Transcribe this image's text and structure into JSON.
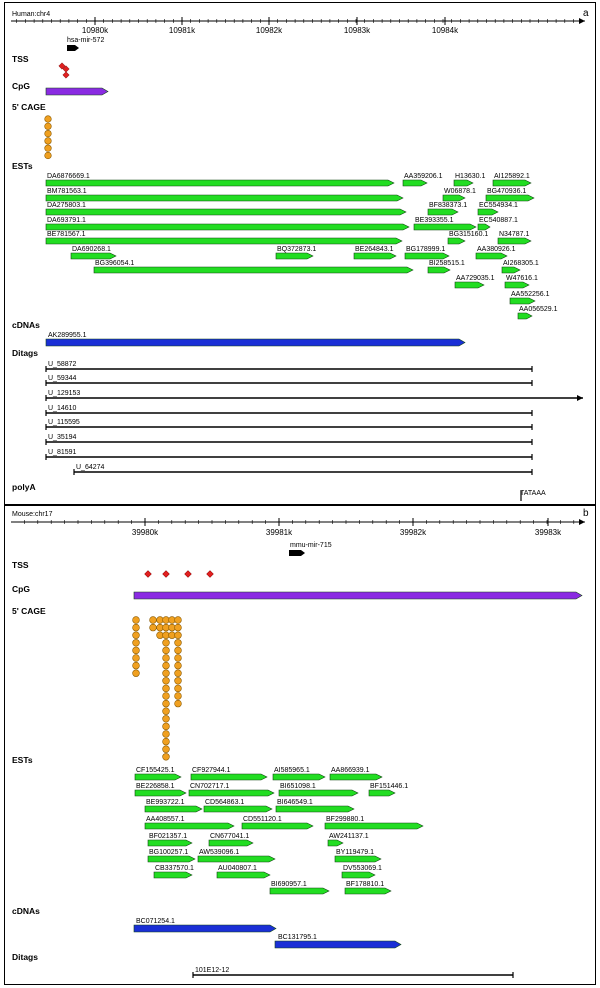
{
  "panels": [
    {
      "letter": "a",
      "chrom": "Human:chr4",
      "ticks": [
        "10980k",
        "10981k",
        "10982k",
        "10983k",
        "10984k"
      ],
      "mirna": "hsa-mir-572",
      "tracks": {
        "tss": "TSS",
        "cpg": "CpG",
        "cage": "5' CAGE",
        "ests": "ESTs",
        "cdnas": "cDNAs",
        "ditags": "Ditags",
        "polya": "polyA"
      },
      "ests": [
        "DA6876669.1",
        "AA359206.1",
        "H13630.1",
        "AI125892.1",
        "BM781563.1",
        "W06878.1",
        "BG470936.1",
        "DA275803.1",
        "BF838373.1",
        "EC554934.1",
        "DA693791.1",
        "BE393355.1",
        "EC540887.1",
        "BE781567.1",
        "BG315160.1",
        "N34787.1",
        "DA690268.1",
        "BQ372873.1",
        "BE264843.1",
        "BG178999.1",
        "AA380926.1",
        "BG396054.1",
        "BI258515.1",
        "AI268305.1",
        "AA729035.1",
        "W47616.1",
        "AA552256.1",
        "AA056529.1"
      ],
      "cdnas": [
        "AK289955.1"
      ],
      "ditags": [
        "U_58872",
        "U_59344",
        "U_129153",
        "U_14610",
        "U_115595",
        "U_35194",
        "U_81591",
        "U_64274"
      ],
      "polya": [
        "TATAAA"
      ]
    },
    {
      "letter": "b",
      "chrom": "Mouse:chr17",
      "ticks": [
        "39980k",
        "39981k",
        "39982k",
        "39983k"
      ],
      "mirna": "mmu-mir-715",
      "tracks": {
        "tss": "TSS",
        "cpg": "CpG",
        "cage": "5' CAGE",
        "ests": "ESTs",
        "cdnas": "cDNAs",
        "ditags": "Ditags"
      },
      "ests": [
        "CF155425.1",
        "CF927944.1",
        "AI585965.1",
        "AA866939.1",
        "BE226858.1",
        "CN702717.1",
        "BI651098.1",
        "BF151446.1",
        "BE993722.1",
        "CD564863.1",
        "BI646549.1",
        "AA408557.1",
        "CD551120.1",
        "BF299880.1",
        "BF021357.1",
        "CN677041.1",
        "AW241137.1",
        "BG100257.1",
        "AW539096.1",
        "BY119479.1",
        "CB337570.1",
        "AU040807.1",
        "DV553069.1",
        "BI690957.1",
        "BF178810.1"
      ],
      "cdnas": [
        "BC071254.1",
        "BC131795.1"
      ],
      "ditags": [
        "101E12-12"
      ]
    }
  ],
  "colors": {
    "est": "#22dd22",
    "cpg": "#8a2be2",
    "cdna": "#1a2fd6",
    "tss": "#e02020",
    "cage": "#f0a020",
    "mirna": "#000000"
  }
}
